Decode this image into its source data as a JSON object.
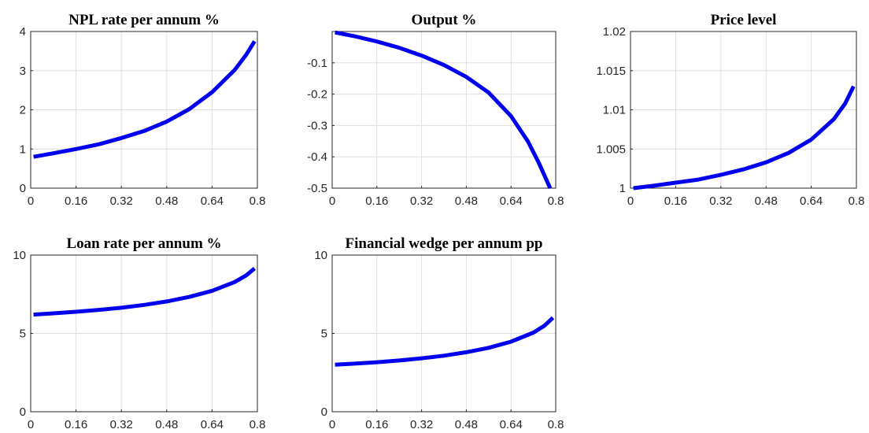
{
  "figure": {
    "background": "#ffffff",
    "line_color": "#0000ee"
  },
  "chart_data": [
    {
      "type": "line",
      "title": "NPL rate per annum %",
      "xlabel": "",
      "ylabel": "",
      "xlim": [
        0,
        0.8
      ],
      "ylim": [
        0,
        4
      ],
      "x_ticks": [
        "0",
        "0.16",
        "0.32",
        "0.48",
        "0.64",
        "0.8"
      ],
      "y_ticks": [
        "0",
        "1",
        "2",
        "3",
        "4"
      ],
      "grid": true,
      "series": [
        {
          "x": [
            0.01,
            0.08,
            0.16,
            0.24,
            0.32,
            0.4,
            0.48,
            0.56,
            0.64,
            0.72,
            0.76,
            0.79
          ],
          "y": [
            0.8,
            0.89,
            1.0,
            1.12,
            1.28,
            1.46,
            1.7,
            2.02,
            2.45,
            3.02,
            3.4,
            3.75
          ]
        }
      ]
    },
    {
      "type": "line",
      "title": "Output %",
      "xlabel": "",
      "ylabel": "",
      "xlim": [
        0,
        0.8
      ],
      "ylim": [
        -0.5,
        0
      ],
      "x_ticks": [
        "0",
        "0.16",
        "0.32",
        "0.48",
        "0.64",
        "0.8"
      ],
      "y_ticks": [
        "-0.5",
        "-0.4",
        "-0.3",
        "-0.2",
        "-0.1"
      ],
      "grid": true,
      "series": [
        {
          "x": [
            0.01,
            0.08,
            0.16,
            0.24,
            0.32,
            0.4,
            0.48,
            0.56,
            0.64,
            0.7,
            0.74,
            0.78
          ],
          "y": [
            -0.003,
            -0.015,
            -0.032,
            -0.052,
            -0.077,
            -0.107,
            -0.145,
            -0.195,
            -0.27,
            -0.35,
            -0.42,
            -0.5
          ]
        }
      ]
    },
    {
      "type": "line",
      "title": "Price level",
      "xlabel": "",
      "ylabel": "",
      "xlim": [
        0,
        0.8
      ],
      "ylim": [
        1,
        1.02
      ],
      "x_ticks": [
        "0",
        "0.16",
        "0.32",
        "0.48",
        "0.64",
        "0.8"
      ],
      "y_ticks": [
        "1",
        "1.005",
        "1.01",
        "1.015",
        "1.02"
      ],
      "grid": true,
      "series": [
        {
          "x": [
            0.01,
            0.08,
            0.16,
            0.24,
            0.32,
            0.4,
            0.48,
            0.56,
            0.64,
            0.72,
            0.76,
            0.79
          ],
          "y": [
            1.0,
            1.0003,
            1.0007,
            1.0011,
            1.0017,
            1.0024,
            1.0033,
            1.0045,
            1.0062,
            1.0088,
            1.0108,
            1.013
          ]
        }
      ]
    },
    {
      "type": "line",
      "title": "Loan rate per annum %",
      "xlabel": "",
      "ylabel": "",
      "xlim": [
        0,
        0.8
      ],
      "ylim": [
        0,
        10
      ],
      "x_ticks": [
        "0",
        "0.16",
        "0.32",
        "0.48",
        "0.64",
        "0.8"
      ],
      "y_ticks": [
        "0",
        "5",
        "10"
      ],
      "grid": true,
      "series": [
        {
          "x": [
            0.01,
            0.08,
            0.16,
            0.24,
            0.32,
            0.4,
            0.48,
            0.56,
            0.64,
            0.72,
            0.76,
            0.79
          ],
          "y": [
            6.2,
            6.28,
            6.38,
            6.5,
            6.64,
            6.82,
            7.04,
            7.33,
            7.72,
            8.28,
            8.7,
            9.15
          ]
        }
      ]
    },
    {
      "type": "line",
      "title": "Financial wedge per annum pp",
      "xlabel": "",
      "ylabel": "",
      "xlim": [
        0,
        0.8
      ],
      "ylim": [
        0,
        10
      ],
      "x_ticks": [
        "0",
        "0.16",
        "0.32",
        "0.48",
        "0.64",
        "0.8"
      ],
      "y_ticks": [
        "0",
        "5",
        "10"
      ],
      "grid": true,
      "series": [
        {
          "x": [
            0.01,
            0.08,
            0.16,
            0.24,
            0.32,
            0.4,
            0.48,
            0.56,
            0.64,
            0.72,
            0.76,
            0.79
          ],
          "y": [
            3.0,
            3.07,
            3.16,
            3.27,
            3.41,
            3.58,
            3.8,
            4.08,
            4.47,
            5.05,
            5.5,
            6.0
          ]
        }
      ]
    }
  ]
}
